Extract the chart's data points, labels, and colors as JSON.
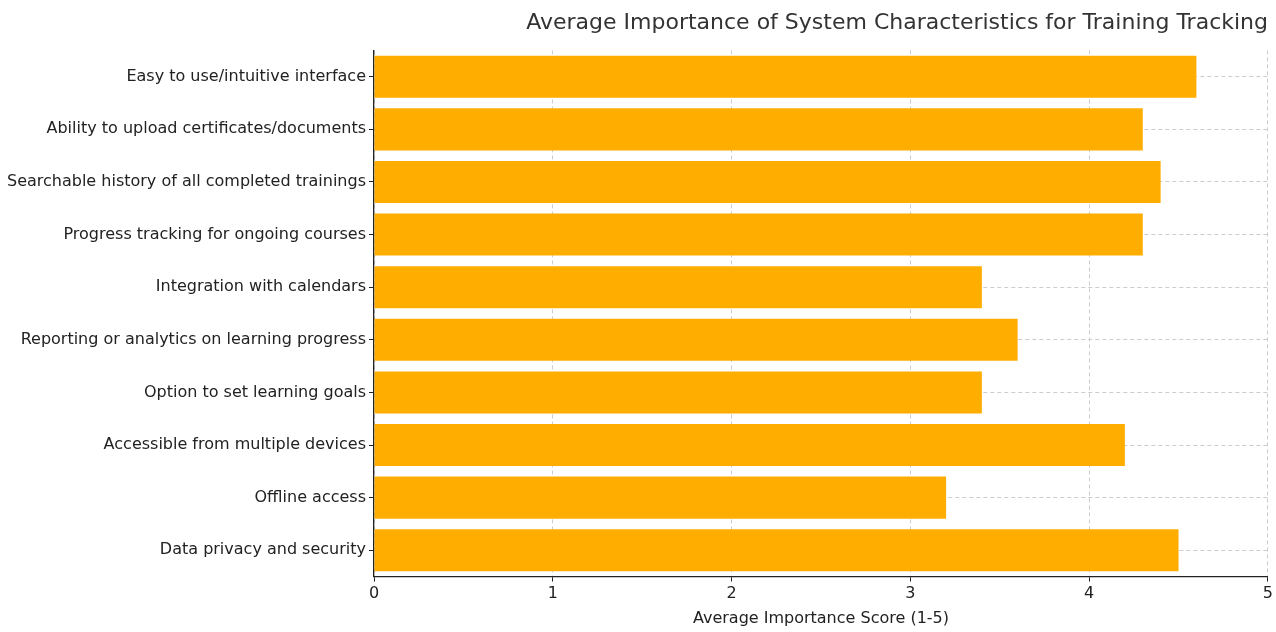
{
  "chart_data": {
    "type": "bar",
    "orientation": "horizontal",
    "title": "Average Importance of System Characteristics for Training Tracking",
    "xlabel": "Average Importance Score (1-5)",
    "categories": [
      "Easy to use/intuitive interface",
      "Ability to upload certificates/documents",
      "Searchable history of all completed trainings",
      "Progress tracking for ongoing courses",
      "Integration with calendars",
      "Reporting or analytics on learning progress",
      "Option to set learning goals",
      "Accessible from multiple devices",
      "Offline access",
      "Data privacy and security"
    ],
    "values": [
      4.6,
      4.3,
      4.4,
      4.3,
      3.4,
      3.6,
      3.4,
      4.2,
      3.2,
      4.5
    ],
    "color": "#ffae00",
    "xlim": [
      0,
      5
    ],
    "xticks": [
      0,
      1,
      2,
      3,
      4,
      5
    ],
    "grid": true,
    "legend": false
  }
}
